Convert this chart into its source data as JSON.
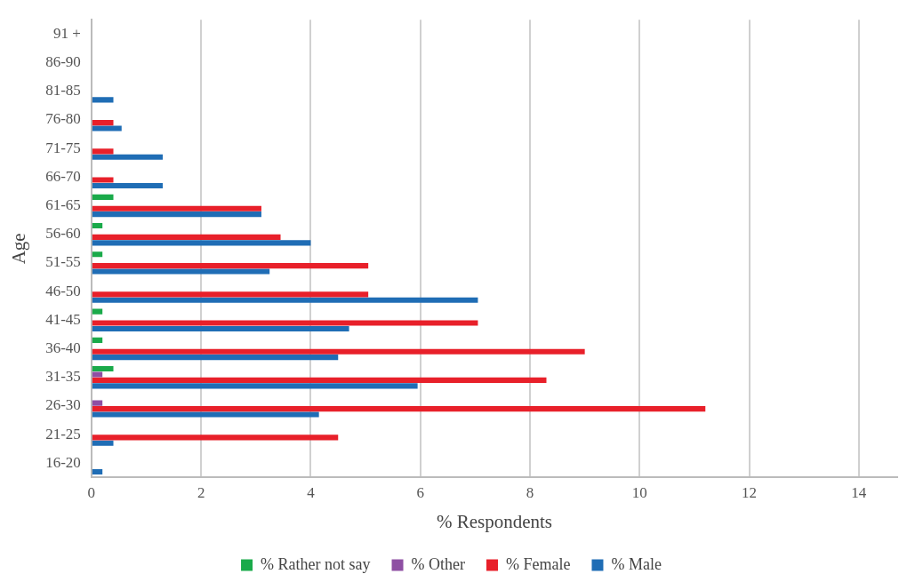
{
  "chart_data": {
    "type": "bar",
    "orientation": "horizontal",
    "xlabel": "% Respondents",
    "ylabel": "Age",
    "categories": [
      "91 +",
      "86-90",
      "81-85",
      "76-80",
      "71-75",
      "66-70",
      "61-65",
      "56-60",
      "51-55",
      "46-50",
      "41-45",
      "36-40",
      "31-35",
      "26-30",
      "21-25",
      "16-20"
    ],
    "series": [
      {
        "name": "% Rather not say",
        "color": "#1aaa4a",
        "values": [
          null,
          null,
          null,
          null,
          null,
          null,
          0.4,
          0.2,
          0.2,
          null,
          0.2,
          0.2,
          0.4,
          null,
          null,
          null
        ]
      },
      {
        "name": "% Other",
        "color": "#8e4fa3",
        "values": [
          null,
          null,
          null,
          null,
          null,
          null,
          null,
          null,
          null,
          null,
          null,
          null,
          0.2,
          0.2,
          null,
          null
        ]
      },
      {
        "name": "% Female",
        "color": "#e8202a",
        "values": [
          null,
          null,
          null,
          0.4,
          0.4,
          0.4,
          3.1,
          3.45,
          5.05,
          5.05,
          7.05,
          9.0,
          8.3,
          11.2,
          4.5,
          null
        ]
      },
      {
        "name": "% Male",
        "color": "#1f6db5",
        "values": [
          null,
          null,
          0.4,
          0.55,
          1.3,
          1.3,
          3.1,
          4.0,
          3.25,
          7.05,
          4.7,
          4.5,
          5.95,
          4.15,
          0.4,
          0.2
        ]
      }
    ],
    "xlim": [
      0,
      14.7
    ],
    "xticks": [
      0,
      2,
      4,
      6,
      8,
      10,
      12,
      14
    ],
    "grid": "x",
    "legend": "bottom"
  }
}
